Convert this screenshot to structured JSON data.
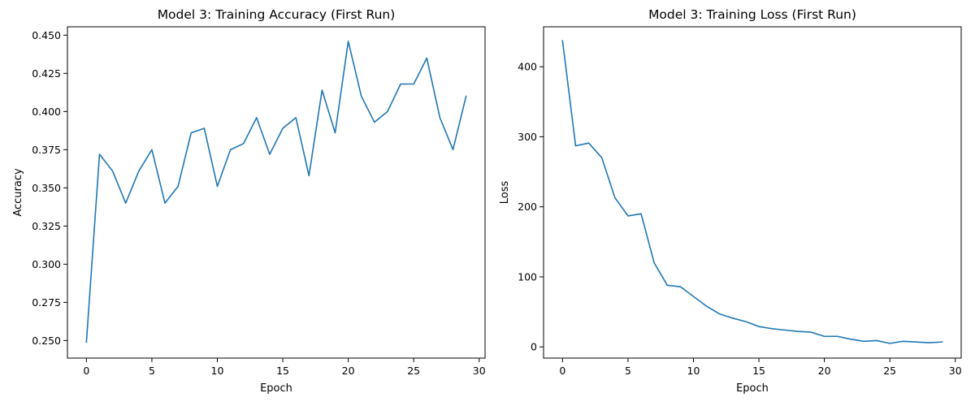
{
  "chart_data": [
    {
      "type": "line",
      "title": "Model 3: Training Accuracy (First Run)",
      "xlabel": "Epoch",
      "ylabel": "Accuracy",
      "xlim": [
        -1.45,
        30.45
      ],
      "ylim": [
        0.2385,
        0.4555
      ],
      "xticks": [
        0,
        5,
        10,
        15,
        20,
        25,
        30
      ],
      "yticks": [
        0.25,
        0.275,
        0.3,
        0.325,
        0.35,
        0.375,
        0.4,
        0.425,
        0.45
      ],
      "ytick_format": 3,
      "grid": false,
      "x": [
        0,
        1,
        2,
        3,
        4,
        5,
        6,
        7,
        8,
        9,
        10,
        11,
        12,
        13,
        14,
        15,
        16,
        17,
        18,
        19,
        20,
        21,
        22,
        23,
        24,
        25,
        26,
        27,
        28,
        29
      ],
      "series": [
        {
          "values": [
            0.249,
            0.372,
            0.361,
            0.34,
            0.361,
            0.375,
            0.34,
            0.351,
            0.386,
            0.389,
            0.351,
            0.375,
            0.379,
            0.396,
            0.372,
            0.389,
            0.396,
            0.358,
            0.414,
            0.386,
            0.446,
            0.41,
            0.393,
            0.4,
            0.418,
            0.418,
            0.435,
            0.396,
            0.375,
            0.41
          ]
        }
      ]
    },
    {
      "type": "line",
      "title": "Model 3: Training Loss (First Run)",
      "xlabel": "Epoch",
      "ylabel": "Loss",
      "xlim": [
        -1.45,
        30.45
      ],
      "ylim": [
        -16,
        457
      ],
      "xticks": [
        0,
        5,
        10,
        15,
        20,
        25,
        30
      ],
      "yticks": [
        0,
        100,
        200,
        300,
        400
      ],
      "ytick_format": 0,
      "grid": false,
      "x": [
        0,
        1,
        2,
        3,
        4,
        5,
        6,
        7,
        8,
        9,
        10,
        11,
        12,
        13,
        14,
        15,
        16,
        17,
        18,
        19,
        20,
        21,
        22,
        23,
        24,
        25,
        26,
        27,
        28,
        29
      ],
      "series": [
        {
          "values": [
            437,
            287,
            291,
            270,
            213,
            187,
            190,
            120,
            88,
            86,
            72,
            58,
            47,
            41,
            36,
            29,
            26,
            24,
            22,
            21,
            15,
            15,
            11,
            8,
            9,
            5,
            8,
            7,
            6,
            7
          ]
        }
      ]
    }
  ]
}
